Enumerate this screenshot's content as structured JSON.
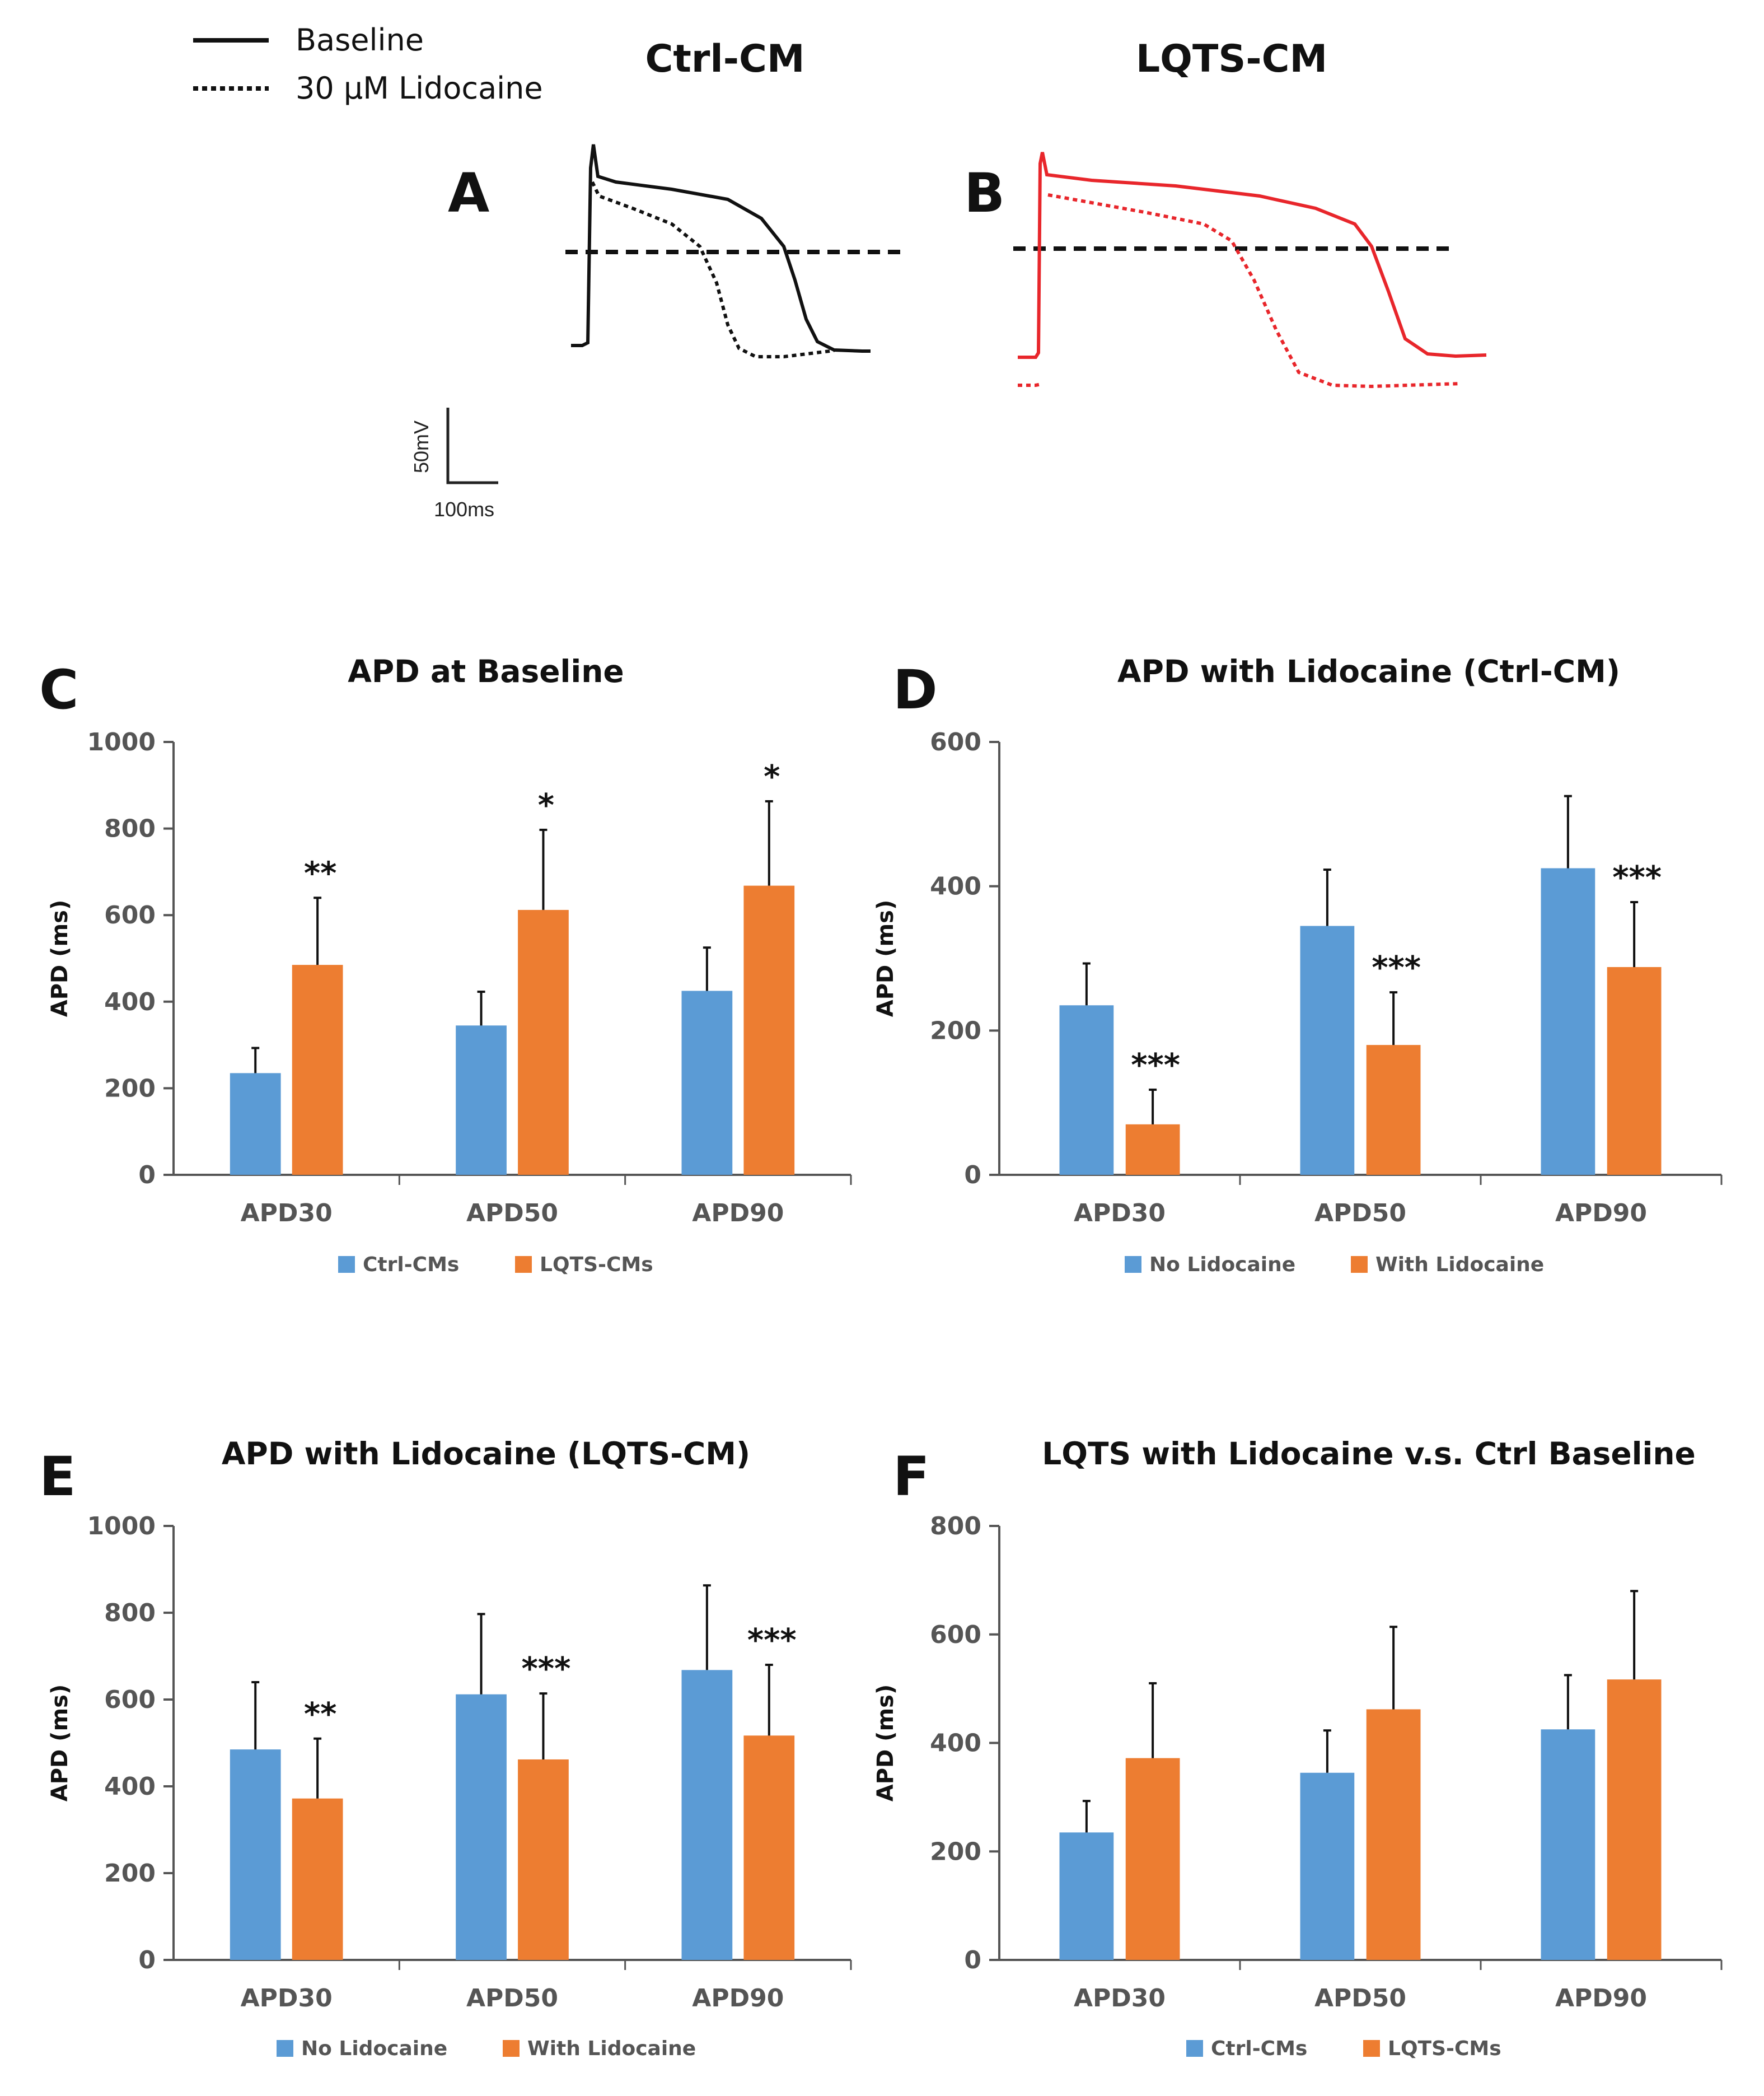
{
  "figure_legend": {
    "solid_label": "Baseline",
    "dotted_label": "30 µM Lidocaine"
  },
  "traces": {
    "a": {
      "label": "A",
      "title": "Ctrl-CM",
      "color": "#111111"
    },
    "b": {
      "label": "B",
      "title": "LQTS-CM",
      "color": "#e8262b"
    }
  },
  "scale_bar": {
    "voltage": "50mV",
    "time": "100ms"
  },
  "colors": {
    "blue": "#5b9bd5",
    "orange": "#ed7d31",
    "axis": "#555555"
  },
  "chart_data": [
    {
      "panel": "C",
      "type": "bar",
      "title": "APD at Baseline",
      "ylabel": "APD (ms)",
      "ylim": [
        0,
        1000
      ],
      "yticks": [
        0,
        200,
        400,
        600,
        800,
        1000
      ],
      "categories": [
        "APD30",
        "APD50",
        "APD90"
      ],
      "series": [
        {
          "name": "Ctrl-CMs",
          "color": "#5b9bd5",
          "values": [
            235,
            345,
            425
          ],
          "errors": [
            58,
            78,
            100
          ]
        },
        {
          "name": "LQTS-CMs",
          "color": "#ed7d31",
          "values": [
            485,
            612,
            668
          ],
          "errors": [
            155,
            185,
            195
          ]
        }
      ],
      "significance": [
        "**",
        "*",
        "*"
      ]
    },
    {
      "panel": "D",
      "type": "bar",
      "title": "APD with Lidocaine (Ctrl-CM)",
      "ylabel": "APD (ms)",
      "ylim": [
        0,
        600
      ],
      "yticks": [
        0,
        200,
        400,
        600
      ],
      "categories": [
        "APD30",
        "APD50",
        "APD90"
      ],
      "series": [
        {
          "name": "No Lidocaine",
          "color": "#5b9bd5",
          "values": [
            235,
            345,
            425
          ],
          "errors": [
            58,
            78,
            100
          ]
        },
        {
          "name": "With Lidocaine",
          "color": "#ed7d31",
          "values": [
            70,
            180,
            288
          ],
          "errors": [
            48,
            73,
            90
          ]
        }
      ],
      "significance": [
        "***",
        "***",
        "***"
      ]
    },
    {
      "panel": "E",
      "type": "bar",
      "title": "APD with Lidocaine (LQTS-CM)",
      "ylabel": "APD (ms)",
      "ylim": [
        0,
        1000
      ],
      "yticks": [
        0,
        200,
        400,
        600,
        800,
        1000
      ],
      "categories": [
        "APD30",
        "APD50",
        "APD90"
      ],
      "series": [
        {
          "name": "No Lidocaine",
          "color": "#5b9bd5",
          "values": [
            485,
            612,
            668
          ],
          "errors": [
            155,
            185,
            195
          ]
        },
        {
          "name": "With Lidocaine",
          "color": "#ed7d31",
          "values": [
            372,
            462,
            517
          ],
          "errors": [
            138,
            152,
            163
          ]
        }
      ],
      "significance": [
        "**",
        "***",
        "***"
      ]
    },
    {
      "panel": "F",
      "type": "bar",
      "title": "LQTS with Lidocaine v.s. Ctrl Baseline",
      "ylabel": "APD (ms)",
      "ylim": [
        0,
        800
      ],
      "yticks": [
        0,
        200,
        400,
        600,
        800
      ],
      "categories": [
        "APD30",
        "APD50",
        "APD90"
      ],
      "series": [
        {
          "name": "Ctrl-CMs",
          "color": "#5b9bd5",
          "values": [
            235,
            345,
            425
          ],
          "errors": [
            58,
            78,
            100
          ]
        },
        {
          "name": "LQTS-CMs",
          "color": "#ed7d31",
          "values": [
            372,
            462,
            517
          ],
          "errors": [
            138,
            152,
            163
          ]
        }
      ],
      "significance": [
        "",
        "",
        ""
      ]
    }
  ]
}
